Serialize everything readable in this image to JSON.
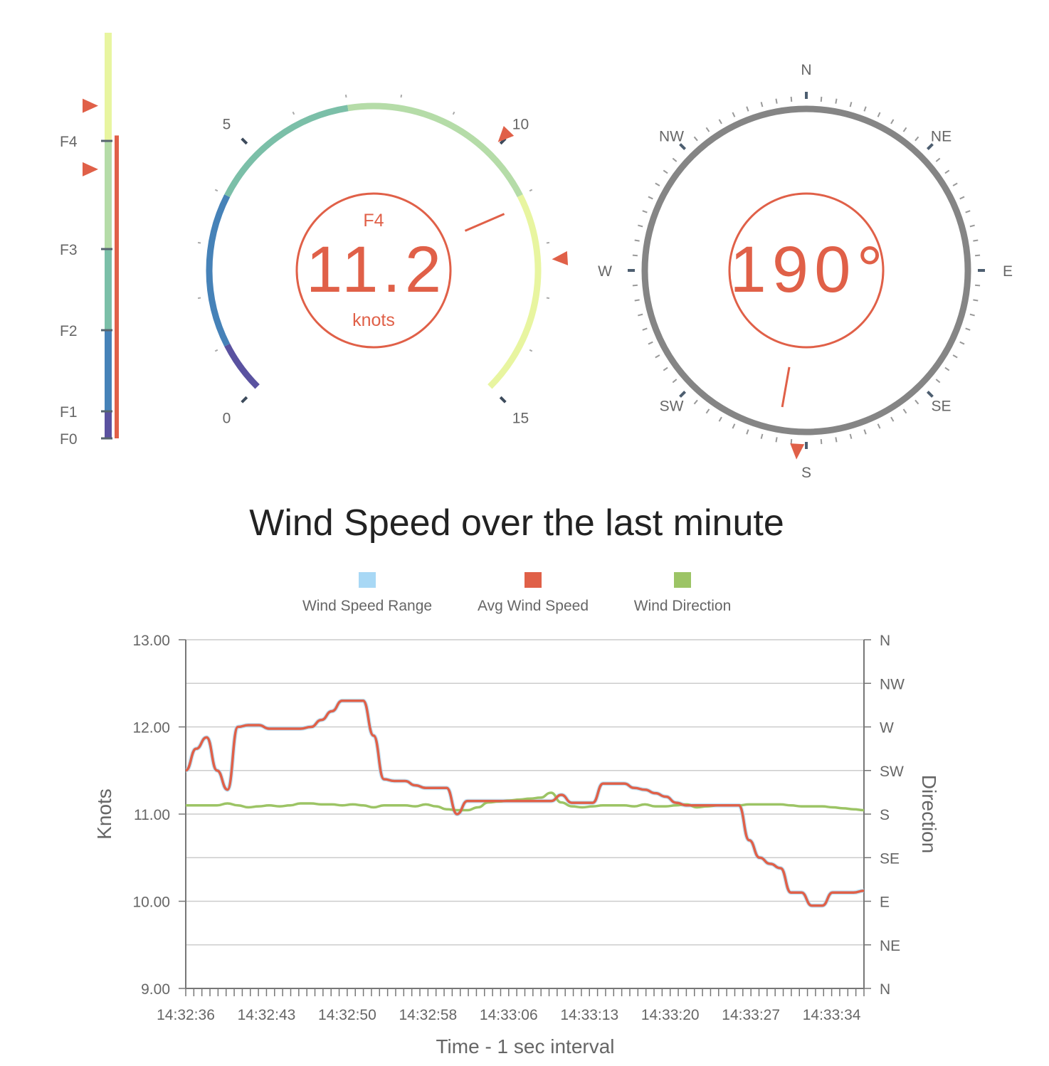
{
  "beaufort_bar": {
    "labels": [
      "F0",
      "F1",
      "F2",
      "F3",
      "F4"
    ],
    "label_knots": [
      0,
      1,
      4,
      7,
      11
    ],
    "max_knots": 15,
    "current_knots": 11.2,
    "min_marker_knots": 9.95,
    "max_marker_knots": 12.3
  },
  "speed_gauge": {
    "force_label": "F4",
    "value": "11.2",
    "unit": "knots",
    "tick_labels": [
      "0",
      "5",
      "10",
      "15"
    ],
    "min": 0,
    "max": 15,
    "needle_value": 11.2,
    "min_marker_value": 9.95,
    "max_marker_value": 12.3
  },
  "compass": {
    "value": "190°",
    "heading_degrees": 190,
    "marker_degrees": 183,
    "points": [
      "N",
      "NE",
      "E",
      "SE",
      "S",
      "SW",
      "W",
      "NW"
    ]
  },
  "colors": {
    "accent": "#e06048",
    "range": "#a8d8f5",
    "direction": "#9cc465",
    "ring": "#858585",
    "scale": [
      "#5a52a0",
      "#4682b8",
      "#7bbfa8",
      "#b5dca8",
      "#e8f5a0"
    ]
  },
  "chart_data": {
    "type": "line",
    "title": "Wind Speed over the last minute",
    "xlabel": "Time - 1 sec interval",
    "ylabel": "Knots",
    "y2label": "Direction",
    "ylim": [
      9,
      13
    ],
    "yticks": [
      "9.00",
      "10.00",
      "11.00",
      "12.00",
      "13.00"
    ],
    "y2ticks": [
      "N",
      "NE",
      "E",
      "SE",
      "S",
      "SW",
      "W",
      "NW",
      "N"
    ],
    "xtick_labels": [
      "14:32:36",
      "14:32:43",
      "14:32:50",
      "14:32:58",
      "14:33:06",
      "14:33:13",
      "14:33:20",
      "14:33:27",
      "14:33:34"
    ],
    "legend": [
      "Wind Speed Range",
      "Avg Wind Speed",
      "Wind Direction"
    ],
    "legend_position": "top-center",
    "series": [
      {
        "name": "Avg Wind Speed",
        "values": [
          11.5,
          11.75,
          11.88,
          11.5,
          11.28,
          12.0,
          12.02,
          12.02,
          11.98,
          11.98,
          11.98,
          11.98,
          12.0,
          12.08,
          12.18,
          12.3,
          12.3,
          12.3,
          11.9,
          11.4,
          11.38,
          11.38,
          11.33,
          11.3,
          11.3,
          11.3,
          11.0,
          11.15,
          11.15,
          11.15,
          11.15,
          11.15,
          11.15,
          11.15,
          11.15,
          11.15,
          11.22,
          11.13,
          11.13,
          11.13,
          11.35,
          11.35,
          11.35,
          11.3,
          11.28,
          11.24,
          11.2,
          11.13,
          11.1,
          11.1,
          11.1,
          11.1,
          11.1,
          11.1,
          10.7,
          10.5,
          10.43,
          10.38,
          10.1,
          10.1,
          9.95,
          9.95,
          10.1,
          10.1,
          10.1,
          10.12
        ]
      },
      {
        "name": "Wind Direction",
        "values": [
          189,
          189,
          189,
          189,
          191,
          189,
          187,
          188,
          189,
          188,
          189,
          191,
          191,
          190,
          190,
          189,
          190,
          189,
          187,
          189,
          189,
          189,
          188,
          190,
          188,
          185,
          184,
          184,
          187,
          192,
          193,
          194,
          195,
          196,
          197,
          202,
          192,
          188,
          187,
          188,
          189,
          189,
          189,
          188,
          190,
          188,
          188,
          189,
          190,
          187,
          188,
          189,
          189,
          189,
          190,
          190,
          190,
          190,
          189,
          188,
          188,
          188,
          187,
          186,
          185,
          184
        ]
      }
    ]
  }
}
